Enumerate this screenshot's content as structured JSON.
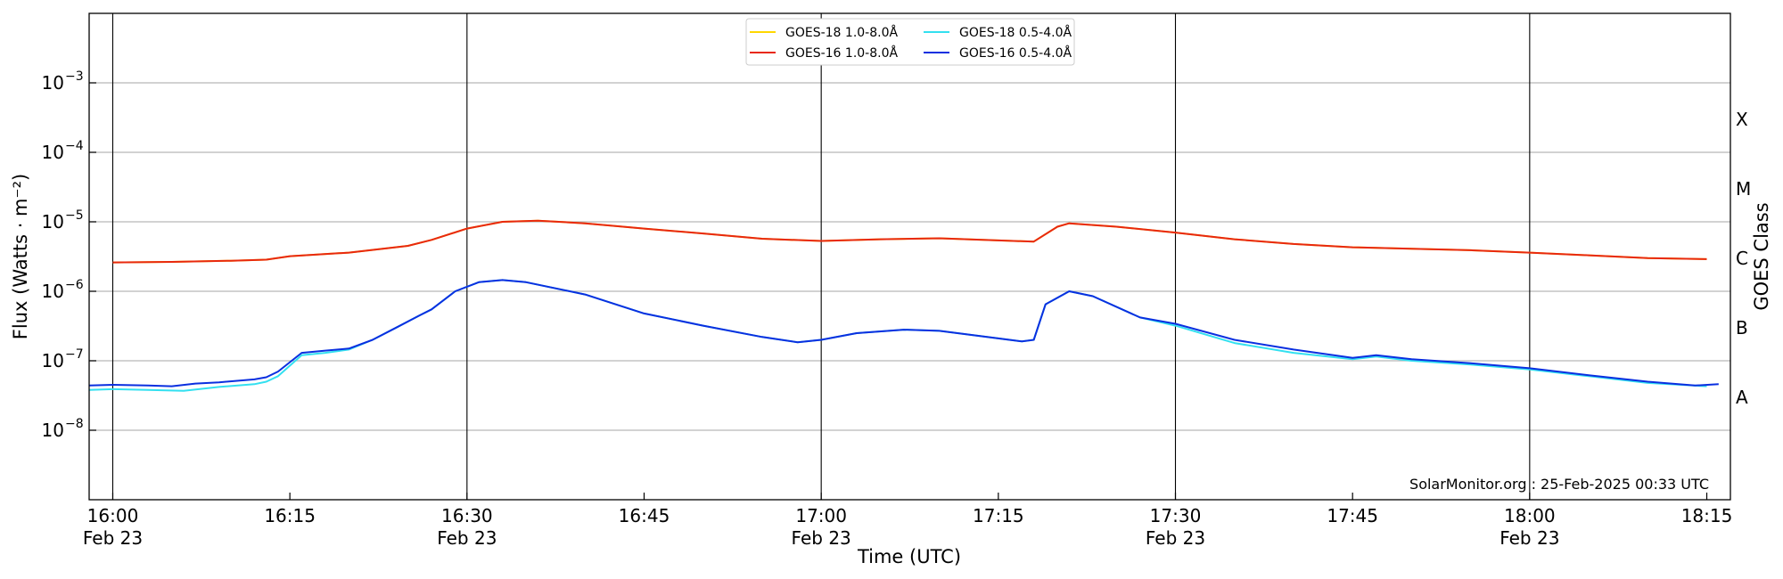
{
  "chart_data": {
    "type": "line",
    "xlabel": "Time (UTC)",
    "ylabel": "Flux (Watts · m⁻²)",
    "y2label": "GOES Class",
    "yscale": "log",
    "ylim": [
      1e-09,
      0.01
    ],
    "xlim": [
      "2025-02-23 15:58",
      "2025-02-23 18:17"
    ],
    "grid": "horizontal at decades",
    "legend_position": "top-center",
    "credit": "SolarMonitor.org : 25-Feb-2025 00:33 UTC",
    "x_ticks": [
      {
        "time": "16:00",
        "date": "Feb 23"
      },
      {
        "time": "16:15",
        "date": ""
      },
      {
        "time": "16:30",
        "date": "Feb 23"
      },
      {
        "time": "16:45",
        "date": ""
      },
      {
        "time": "17:00",
        "date": "Feb 23"
      },
      {
        "time": "17:15",
        "date": ""
      },
      {
        "time": "17:30",
        "date": "Feb 23"
      },
      {
        "time": "17:45",
        "date": ""
      },
      {
        "time": "18:00",
        "date": "Feb 23"
      },
      {
        "time": "18:15",
        "date": ""
      }
    ],
    "day_lines": [
      "16:00",
      "16:30",
      "17:00",
      "17:30",
      "18:00"
    ],
    "y_ticks": [
      {
        "exp": -8,
        "label": "10",
        "sup": "−8"
      },
      {
        "exp": -7,
        "label": "10",
        "sup": "−7"
      },
      {
        "exp": -6,
        "label": "10",
        "sup": "−6"
      },
      {
        "exp": -5,
        "label": "10",
        "sup": "−5"
      },
      {
        "exp": -4,
        "label": "10",
        "sup": "−4"
      },
      {
        "exp": -3,
        "label": "10",
        "sup": "−3"
      }
    ],
    "goes_classes": [
      {
        "label": "A",
        "flux": 3e-08
      },
      {
        "label": "B",
        "flux": 3e-07
      },
      {
        "label": "C",
        "flux": 3e-06
      },
      {
        "label": "M",
        "flux": 3e-05
      },
      {
        "label": "X",
        "flux": 0.0003
      }
    ],
    "series": [
      {
        "name": "GOES-18 1.0-8.0Å",
        "color": "#ffd700",
        "points": [
          [
            "16:00",
            2.6e-06
          ],
          [
            "16:05",
            2.65e-06
          ],
          [
            "16:10",
            2.75e-06
          ],
          [
            "16:13",
            2.85e-06
          ],
          [
            "16:15",
            3.2e-06
          ],
          [
            "16:20",
            3.6e-06
          ],
          [
            "16:25",
            4.5e-06
          ],
          [
            "16:27",
            5.5e-06
          ],
          [
            "16:30",
            8e-06
          ],
          [
            "16:33",
            1e-05
          ],
          [
            "16:36",
            1.04e-05
          ],
          [
            "16:40",
            9.5e-06
          ],
          [
            "16:45",
            8e-06
          ],
          [
            "16:50",
            6.8e-06
          ],
          [
            "16:55",
            5.7e-06
          ],
          [
            "17:00",
            5.3e-06
          ],
          [
            "17:05",
            5.6e-06
          ],
          [
            "17:10",
            5.8e-06
          ],
          [
            "17:15",
            5.4e-06
          ],
          [
            "17:18",
            5.2e-06
          ],
          [
            "17:20",
            8.5e-06
          ],
          [
            "17:21",
            9.5e-06
          ],
          [
            "17:25",
            8.5e-06
          ],
          [
            "17:30",
            7e-06
          ],
          [
            "17:35",
            5.6e-06
          ],
          [
            "17:40",
            4.8e-06
          ],
          [
            "17:45",
            4.3e-06
          ],
          [
            "17:50",
            4.1e-06
          ],
          [
            "17:55",
            3.9e-06
          ],
          [
            "18:00",
            3.6e-06
          ],
          [
            "18:05",
            3.3e-06
          ],
          [
            "18:10",
            3e-06
          ],
          [
            "18:15",
            2.9e-06
          ]
        ]
      },
      {
        "name": "GOES-16 1.0-8.0Å",
        "color": "#e8280f",
        "points": [
          [
            "16:00",
            2.6e-06
          ],
          [
            "16:05",
            2.65e-06
          ],
          [
            "16:10",
            2.75e-06
          ],
          [
            "16:13",
            2.85e-06
          ],
          [
            "16:15",
            3.2e-06
          ],
          [
            "16:20",
            3.6e-06
          ],
          [
            "16:25",
            4.5e-06
          ],
          [
            "16:27",
            5.5e-06
          ],
          [
            "16:30",
            8e-06
          ],
          [
            "16:33",
            1e-05
          ],
          [
            "16:36",
            1.04e-05
          ],
          [
            "16:40",
            9.5e-06
          ],
          [
            "16:45",
            8e-06
          ],
          [
            "16:50",
            6.8e-06
          ],
          [
            "16:55",
            5.7e-06
          ],
          [
            "17:00",
            5.3e-06
          ],
          [
            "17:05",
            5.6e-06
          ],
          [
            "17:10",
            5.8e-06
          ],
          [
            "17:15",
            5.4e-06
          ],
          [
            "17:18",
            5.2e-06
          ],
          [
            "17:20",
            8.5e-06
          ],
          [
            "17:21",
            9.5e-06
          ],
          [
            "17:25",
            8.5e-06
          ],
          [
            "17:30",
            7e-06
          ],
          [
            "17:35",
            5.6e-06
          ],
          [
            "17:40",
            4.8e-06
          ],
          [
            "17:45",
            4.3e-06
          ],
          [
            "17:50",
            4.1e-06
          ],
          [
            "17:55",
            3.9e-06
          ],
          [
            "18:00",
            3.6e-06
          ],
          [
            "18:05",
            3.3e-06
          ],
          [
            "18:10",
            3e-06
          ],
          [
            "18:15",
            2.9e-06
          ]
        ]
      },
      {
        "name": "GOES-18 0.5-4.0Å",
        "color": "#33e0f0",
        "points": [
          [
            "15:58",
            3.8e-08
          ],
          [
            "16:00",
            3.9e-08
          ],
          [
            "16:03",
            3.8e-08
          ],
          [
            "16:06",
            3.7e-08
          ],
          [
            "16:09",
            4.2e-08
          ],
          [
            "16:12",
            4.6e-08
          ],
          [
            "16:13",
            5e-08
          ],
          [
            "16:14",
            6e-08
          ],
          [
            "16:16",
            1.2e-07
          ],
          [
            "16:18",
            1.3e-07
          ],
          [
            "16:20",
            1.45e-07
          ],
          [
            "16:22",
            2e-07
          ],
          [
            "16:24",
            3e-07
          ],
          [
            "16:26",
            4.5e-07
          ],
          [
            "16:27",
            5.5e-07
          ],
          [
            "16:29",
            1e-06
          ],
          [
            "16:31",
            1.35e-06
          ],
          [
            "16:33",
            1.45e-06
          ],
          [
            "16:35",
            1.35e-06
          ],
          [
            "16:40",
            9e-07
          ],
          [
            "16:45",
            4.8e-07
          ],
          [
            "16:50",
            3.2e-07
          ],
          [
            "16:55",
            2.2e-07
          ],
          [
            "16:58",
            1.85e-07
          ],
          [
            "17:00",
            2e-07
          ],
          [
            "17:03",
            2.5e-07
          ],
          [
            "17:07",
            2.8e-07
          ],
          [
            "17:10",
            2.7e-07
          ],
          [
            "17:15",
            2.1e-07
          ],
          [
            "17:17",
            1.9e-07
          ],
          [
            "17:18",
            2e-07
          ],
          [
            "17:19",
            6.5e-07
          ],
          [
            "17:21",
            1e-06
          ],
          [
            "17:23",
            8.5e-07
          ],
          [
            "17:27",
            4.2e-07
          ],
          [
            "17:30",
            3.2e-07
          ],
          [
            "17:35",
            1.8e-07
          ],
          [
            "17:40",
            1.3e-07
          ],
          [
            "17:45",
            1.05e-07
          ],
          [
            "17:47",
            1.15e-07
          ],
          [
            "17:50",
            1e-07
          ],
          [
            "17:55",
            8.8e-08
          ],
          [
            "18:00",
            7.5e-08
          ],
          [
            "18:05",
            6e-08
          ],
          [
            "18:10",
            4.8e-08
          ],
          [
            "18:15",
            4.3e-08
          ]
        ]
      },
      {
        "name": "GOES-16 0.5-4.0Å",
        "color": "#0a2fe0",
        "points": [
          [
            "15:58",
            4.4e-08
          ],
          [
            "16:00",
            4.5e-08
          ],
          [
            "16:03",
            4.4e-08
          ],
          [
            "16:05",
            4.3e-08
          ],
          [
            "16:07",
            4.7e-08
          ],
          [
            "16:09",
            4.9e-08
          ],
          [
            "16:12",
            5.4e-08
          ],
          [
            "16:13",
            5.8e-08
          ],
          [
            "16:14",
            7e-08
          ],
          [
            "16:16",
            1.3e-07
          ],
          [
            "16:18",
            1.4e-07
          ],
          [
            "16:20",
            1.5e-07
          ],
          [
            "16:22",
            2e-07
          ],
          [
            "16:24",
            3e-07
          ],
          [
            "16:26",
            4.5e-07
          ],
          [
            "16:27",
            5.5e-07
          ],
          [
            "16:29",
            1e-06
          ],
          [
            "16:31",
            1.35e-06
          ],
          [
            "16:33",
            1.45e-06
          ],
          [
            "16:35",
            1.35e-06
          ],
          [
            "16:40",
            9e-07
          ],
          [
            "16:45",
            4.8e-07
          ],
          [
            "16:50",
            3.2e-07
          ],
          [
            "16:55",
            2.2e-07
          ],
          [
            "16:58",
            1.85e-07
          ],
          [
            "17:00",
            2e-07
          ],
          [
            "17:03",
            2.5e-07
          ],
          [
            "17:07",
            2.8e-07
          ],
          [
            "17:10",
            2.7e-07
          ],
          [
            "17:15",
            2.1e-07
          ],
          [
            "17:17",
            1.9e-07
          ],
          [
            "17:18",
            2e-07
          ],
          [
            "17:19",
            6.5e-07
          ],
          [
            "17:21",
            1e-06
          ],
          [
            "17:23",
            8.5e-07
          ],
          [
            "17:27",
            4.2e-07
          ],
          [
            "17:30",
            3.4e-07
          ],
          [
            "17:35",
            2e-07
          ],
          [
            "17:40",
            1.45e-07
          ],
          [
            "17:45",
            1.1e-07
          ],
          [
            "17:47",
            1.2e-07
          ],
          [
            "17:50",
            1.05e-07
          ],
          [
            "17:55",
            9.2e-08
          ],
          [
            "18:00",
            7.8e-08
          ],
          [
            "18:05",
            6.2e-08
          ],
          [
            "18:10",
            5e-08
          ],
          [
            "18:14",
            4.4e-08
          ],
          [
            "18:16",
            4.6e-08
          ]
        ]
      }
    ]
  }
}
